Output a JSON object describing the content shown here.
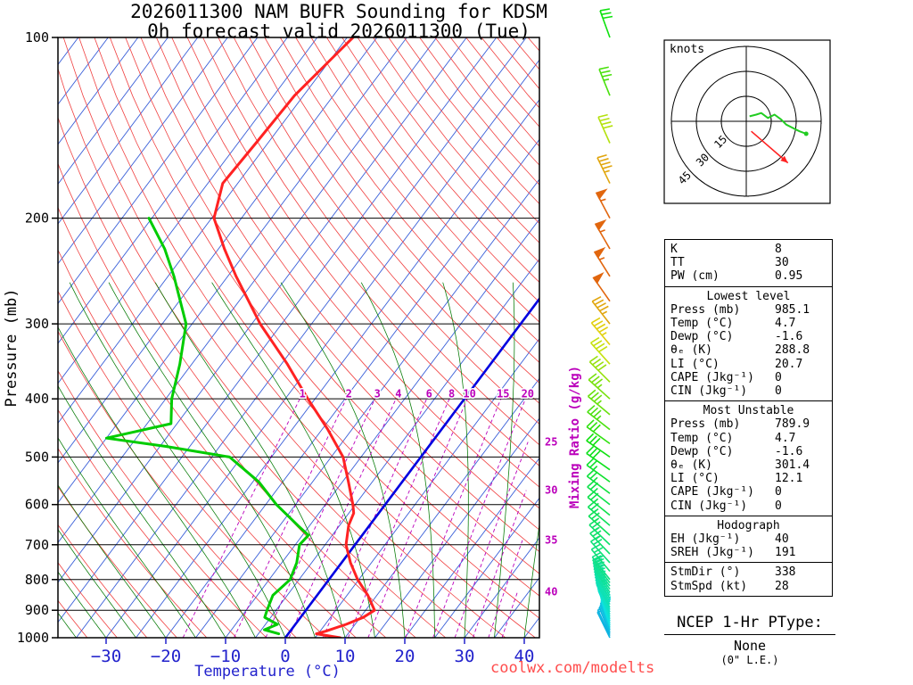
{
  "title": {
    "line1": "2026011300 NAM BUFR Sounding for KDSM",
    "line2": "0h forecast valid 2026011300 (Tue)"
  },
  "axes": {
    "pressure_label": "Pressure (mb)",
    "temperature_label": "Temperature (°C)",
    "mixing_ratio_label": "Mixing Ratio (g/kg)",
    "pressure_ticks": [
      100,
      200,
      300,
      400,
      500,
      600,
      700,
      800,
      900,
      1000
    ],
    "temperature_ticks": [
      -30,
      -20,
      -10,
      0,
      10,
      20,
      30,
      40
    ]
  },
  "hodograph": {
    "units_label": "knots",
    "ring_labels": [
      15,
      30,
      45
    ]
  },
  "stats": {
    "sections": [
      {
        "rows": [
          [
            "K",
            "8"
          ],
          [
            "TT",
            "30"
          ],
          [
            "PW (cm)",
            "0.95"
          ]
        ]
      },
      {
        "header": "Lowest level",
        "rows": [
          [
            "Press (mb)",
            "985.1"
          ],
          [
            "Temp (°C)",
            "4.7"
          ],
          [
            "Dewp (°C)",
            "-1.6"
          ],
          [
            "θₑ (K)",
            "288.8"
          ],
          [
            "LI (°C)",
            "20.7"
          ],
          [
            "CAPE (Jkg⁻¹)",
            "0"
          ],
          [
            "CIN (Jkg⁻¹)",
            "0"
          ]
        ]
      },
      {
        "header": "Most Unstable",
        "rows": [
          [
            "Press (mb)",
            "789.9"
          ],
          [
            "Temp (°C)",
            "4.7"
          ],
          [
            "Dewp (°C)",
            "-1.6"
          ],
          [
            "θₑ (K)",
            "301.4"
          ],
          [
            "LI (°C)",
            "12.1"
          ],
          [
            "CAPE (Jkg⁻¹)",
            "0"
          ],
          [
            "CIN (Jkg⁻¹)",
            "0"
          ]
        ]
      },
      {
        "header": "Hodograph",
        "rows": [
          [
            "EH (Jkg⁻¹)",
            "40"
          ],
          [
            "SREH (Jkg⁻¹)",
            "191"
          ]
        ]
      },
      {
        "rows": [
          [
            "StmDir (°)",
            "338"
          ],
          [
            "StmSpd (kt)",
            "28"
          ]
        ]
      }
    ]
  },
  "ptype": {
    "heading": "NCEP 1-Hr PType:",
    "value": "None",
    "note": "(0\" L.E.)"
  },
  "footer": {
    "credit": "coolwx.com/modelts"
  },
  "chart_data": {
    "type": "skewt-log-p",
    "station": "KDSM",
    "pressure_range_mb": [
      100,
      1000
    ],
    "isotherm_step_c": 5,
    "dry_adiabat_step_k": 5,
    "moist_adiabat_step_c": 5,
    "mixing_ratio_lines_gkg": [
      1,
      2,
      3,
      4,
      6,
      8,
      10,
      15,
      20,
      25,
      30,
      35,
      40
    ],
    "temperature_profile": [
      [
        1000,
        9.2
      ],
      [
        985,
        4.7
      ],
      [
        975,
        6.0
      ],
      [
        950,
        8.5
      ],
      [
        925,
        10.5
      ],
      [
        900,
        11.5
      ],
      [
        850,
        8.5
      ],
      [
        800,
        4.8
      ],
      [
        750,
        1.5
      ],
      [
        700,
        -1.5
      ],
      [
        650,
        -3.5
      ],
      [
        620,
        -4.2
      ],
      [
        600,
        -5.4
      ],
      [
        550,
        -9.0
      ],
      [
        500,
        -13.0
      ],
      [
        450,
        -19.0
      ],
      [
        400,
        -26.2
      ],
      [
        350,
        -34.0
      ],
      [
        300,
        -43.6
      ],
      [
        250,
        -53.6
      ],
      [
        225,
        -59.0
      ],
      [
        200,
        -64.6
      ],
      [
        175,
        -67.5
      ],
      [
        150,
        -67.0
      ],
      [
        125,
        -66.5
      ],
      [
        100,
        -64.0
      ]
    ],
    "dewpoint_profile": [
      [
        985,
        -1.6
      ],
      [
        970,
        -4.5
      ],
      [
        950,
        -3.0
      ],
      [
        925,
        -6.0
      ],
      [
        900,
        -6.5
      ],
      [
        850,
        -7.4
      ],
      [
        800,
        -6.5
      ],
      [
        750,
        -7.5
      ],
      [
        700,
        -9.3
      ],
      [
        675,
        -9.0
      ],
      [
        650,
        -12.0
      ],
      [
        600,
        -18.2
      ],
      [
        550,
        -24.0
      ],
      [
        500,
        -32.0
      ],
      [
        480,
        -44.0
      ],
      [
        465,
        -55.0
      ],
      [
        440,
        -46.0
      ],
      [
        400,
        -49.0
      ],
      [
        350,
        -52.0
      ],
      [
        300,
        -56.0
      ],
      [
        250,
        -64.0
      ],
      [
        225,
        -69.0
      ],
      [
        200,
        -75.5
      ]
    ],
    "winds": [
      [
        1000,
        334,
        11
      ],
      [
        992,
        335,
        12
      ],
      [
        985,
        338,
        12
      ],
      [
        978,
        340,
        13
      ],
      [
        970,
        341,
        13
      ],
      [
        962,
        342,
        14
      ],
      [
        954,
        342,
        15
      ],
      [
        946,
        341,
        15
      ],
      [
        938,
        340,
        15
      ],
      [
        930,
        338,
        16
      ],
      [
        922,
        336,
        16
      ],
      [
        914,
        335,
        17
      ],
      [
        906,
        334,
        17
      ],
      [
        898,
        332,
        17
      ],
      [
        890,
        331,
        18
      ],
      [
        880,
        330,
        18
      ],
      [
        870,
        329,
        18
      ],
      [
        860,
        328,
        19
      ],
      [
        850,
        327,
        19
      ],
      [
        840,
        326,
        20
      ],
      [
        830,
        325,
        20
      ],
      [
        820,
        324,
        20
      ],
      [
        810,
        323,
        21
      ],
      [
        800,
        322,
        21
      ],
      [
        775,
        320,
        22
      ],
      [
        750,
        318,
        22
      ],
      [
        725,
        316,
        23
      ],
      [
        700,
        314,
        23
      ],
      [
        675,
        312,
        24
      ],
      [
        650,
        310,
        24
      ],
      [
        625,
        309,
        25
      ],
      [
        600,
        308,
        25
      ],
      [
        575,
        307,
        26
      ],
      [
        550,
        306,
        27
      ],
      [
        525,
        305,
        28
      ],
      [
        500,
        305,
        29
      ],
      [
        475,
        306,
        31
      ],
      [
        450,
        308,
        33
      ],
      [
        425,
        310,
        35
      ],
      [
        400,
        312,
        36
      ],
      [
        375,
        315,
        38
      ],
      [
        350,
        318,
        41
      ],
      [
        325,
        320,
        44
      ],
      [
        300,
        322,
        47
      ],
      [
        275,
        325,
        51
      ],
      [
        250,
        328,
        55
      ],
      [
        225,
        330,
        57
      ],
      [
        200,
        332,
        54
      ],
      [
        175,
        334,
        47
      ],
      [
        150,
        336,
        40
      ],
      [
        125,
        338,
        33
      ],
      [
        100,
        340,
        29
      ]
    ],
    "hodograph_trace_kt": [
      [
        2,
        3
      ],
      [
        6,
        4
      ],
      [
        9,
        5
      ],
      [
        13,
        2
      ],
      [
        17,
        4
      ],
      [
        21,
        1
      ],
      [
        24,
        -2
      ],
      [
        28,
        -4
      ],
      [
        32,
        -6
      ],
      [
        36,
        -7.5
      ]
    ],
    "storm_motion_arrow_kt": [
      [
        3,
        -6
      ],
      [
        25,
        -25
      ]
    ],
    "colors": {
      "isotherm": "#3A5FD8",
      "zero_isotherm": "#0000E0",
      "dry_adiabat": "#F04040",
      "moist_adiabat": "#007800",
      "mixing_ratio": "#BB00BB",
      "temperature": "#FF2222",
      "dewpoint": "#00CC00",
      "axis_blue": "#2222CC",
      "hodograph_trace": "#22CC22",
      "storm_arrow": "#FF2222",
      "credit_red": "#FF4D4D"
    }
  }
}
